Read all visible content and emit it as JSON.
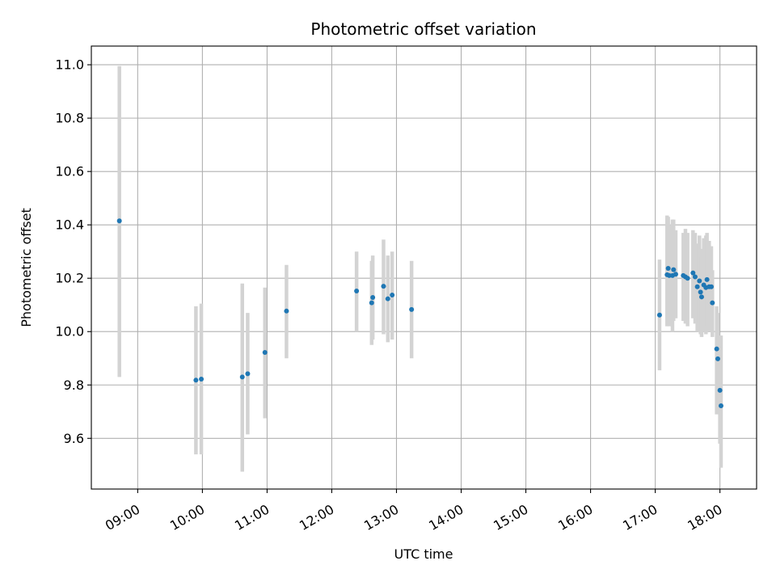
{
  "chart_data": {
    "type": "scatter",
    "title": "Photometric offset variation",
    "xlabel": "UTC time",
    "ylabel": "Photometric offset",
    "x_axis_type": "time",
    "xlim": [
      "08:17",
      "18:34"
    ],
    "ylim": [
      9.41,
      11.07
    ],
    "x_ticks": [
      "09:00",
      "10:00",
      "11:00",
      "12:00",
      "13:00",
      "14:00",
      "15:00",
      "16:00",
      "17:00",
      "18:00"
    ],
    "y_ticks": [
      9.6,
      9.8,
      10.0,
      10.2,
      10.4,
      10.6,
      10.8,
      11.0
    ],
    "y_tick_labels": [
      "9.6",
      "9.8",
      "10.0",
      "10.2",
      "10.4",
      "10.6",
      "10.8",
      "11.0"
    ],
    "grid": true,
    "legend": "none",
    "colors": {
      "points": "#1f77b4",
      "error_bars": "#d3d3d3",
      "grid": "#b0b0b0"
    },
    "points": [
      {
        "x": "08:43",
        "y": 10.415,
        "err_low": 9.83,
        "err_high": 10.995
      },
      {
        "x": "09:54",
        "y": 9.818,
        "err_low": 9.54,
        "err_high": 10.095
      },
      {
        "x": "09:59",
        "y": 9.822,
        "err_low": 9.54,
        "err_high": 10.105
      },
      {
        "x": "10:37",
        "y": 9.83,
        "err_low": 9.475,
        "err_high": 10.18
      },
      {
        "x": "10:42",
        "y": 9.842,
        "err_low": 9.615,
        "err_high": 10.07
      },
      {
        "x": "10:58",
        "y": 9.922,
        "err_low": 9.675,
        "err_high": 10.165
      },
      {
        "x": "11:18",
        "y": 10.077,
        "err_low": 9.9,
        "err_high": 10.25
      },
      {
        "x": "12:23",
        "y": 10.152,
        "err_low": 10.0,
        "err_high": 10.3
      },
      {
        "x": "12:37",
        "y": 10.108,
        "err_low": 9.95,
        "err_high": 10.265
      },
      {
        "x": "12:38",
        "y": 10.128,
        "err_low": 9.97,
        "err_high": 10.285
      },
      {
        "x": "12:48",
        "y": 10.17,
        "err_low": 9.99,
        "err_high": 10.345
      },
      {
        "x": "12:52",
        "y": 10.123,
        "err_low": 9.96,
        "err_high": 10.285
      },
      {
        "x": "12:56",
        "y": 10.137,
        "err_low": 9.97,
        "err_high": 10.3
      },
      {
        "x": "13:14",
        "y": 10.083,
        "err_low": 9.9,
        "err_high": 10.265
      },
      {
        "x": "17:04",
        "y": 10.062,
        "err_low": 9.855,
        "err_high": 10.27
      },
      {
        "x": "17:11",
        "y": 10.213,
        "err_low": 10.02,
        "err_high": 10.435
      },
      {
        "x": "17:12",
        "y": 10.237,
        "err_low": 10.05,
        "err_high": 10.43
      },
      {
        "x": "17:13",
        "y": 10.21,
        "err_low": 10.02,
        "err_high": 10.4
      },
      {
        "x": "17:16",
        "y": 10.21,
        "err_low": 10.0,
        "err_high": 10.42
      },
      {
        "x": "17:17",
        "y": 10.232,
        "err_low": 10.04,
        "err_high": 10.42
      },
      {
        "x": "17:19",
        "y": 10.215,
        "err_low": 10.05,
        "err_high": 10.38
      },
      {
        "x": "17:26",
        "y": 10.21,
        "err_low": 10.04,
        "err_high": 10.37
      },
      {
        "x": "17:28",
        "y": 10.205,
        "err_low": 10.03,
        "err_high": 10.385
      },
      {
        "x": "17:30",
        "y": 10.2,
        "err_low": 10.02,
        "err_high": 10.37
      },
      {
        "x": "17:35",
        "y": 10.22,
        "err_low": 10.05,
        "err_high": 10.38
      },
      {
        "x": "17:37",
        "y": 10.205,
        "err_low": 10.03,
        "err_high": 10.37
      },
      {
        "x": "17:39",
        "y": 10.168,
        "err_low": 10.0,
        "err_high": 10.33
      },
      {
        "x": "17:41",
        "y": 10.19,
        "err_low": 10.0,
        "err_high": 10.36
      },
      {
        "x": "17:42",
        "y": 10.148,
        "err_low": 9.99,
        "err_high": 10.31
      },
      {
        "x": "17:43",
        "y": 10.13,
        "err_low": 9.98,
        "err_high": 10.28
      },
      {
        "x": "17:45",
        "y": 10.175,
        "err_low": 10.0,
        "err_high": 10.35
      },
      {
        "x": "17:47",
        "y": 10.165,
        "err_low": 9.99,
        "err_high": 10.36
      },
      {
        "x": "17:48",
        "y": 10.195,
        "err_low": 10.02,
        "err_high": 10.37
      },
      {
        "x": "17:50",
        "y": 10.168,
        "err_low": 10.0,
        "err_high": 10.34
      },
      {
        "x": "17:52",
        "y": 10.168,
        "err_low": 10.01,
        "err_high": 10.32
      },
      {
        "x": "17:53",
        "y": 10.108,
        "err_low": 9.98,
        "err_high": 10.23
      },
      {
        "x": "17:57",
        "y": 9.935,
        "err_low": 9.69,
        "err_high": 10.095
      },
      {
        "x": "17:58",
        "y": 9.898,
        "err_low": 9.72,
        "err_high": 10.07
      },
      {
        "x": "18:00",
        "y": 9.78,
        "err_low": 9.58,
        "err_high": 9.985
      },
      {
        "x": "18:01",
        "y": 9.722,
        "err_low": 9.49,
        "err_high": 9.985
      }
    ]
  }
}
